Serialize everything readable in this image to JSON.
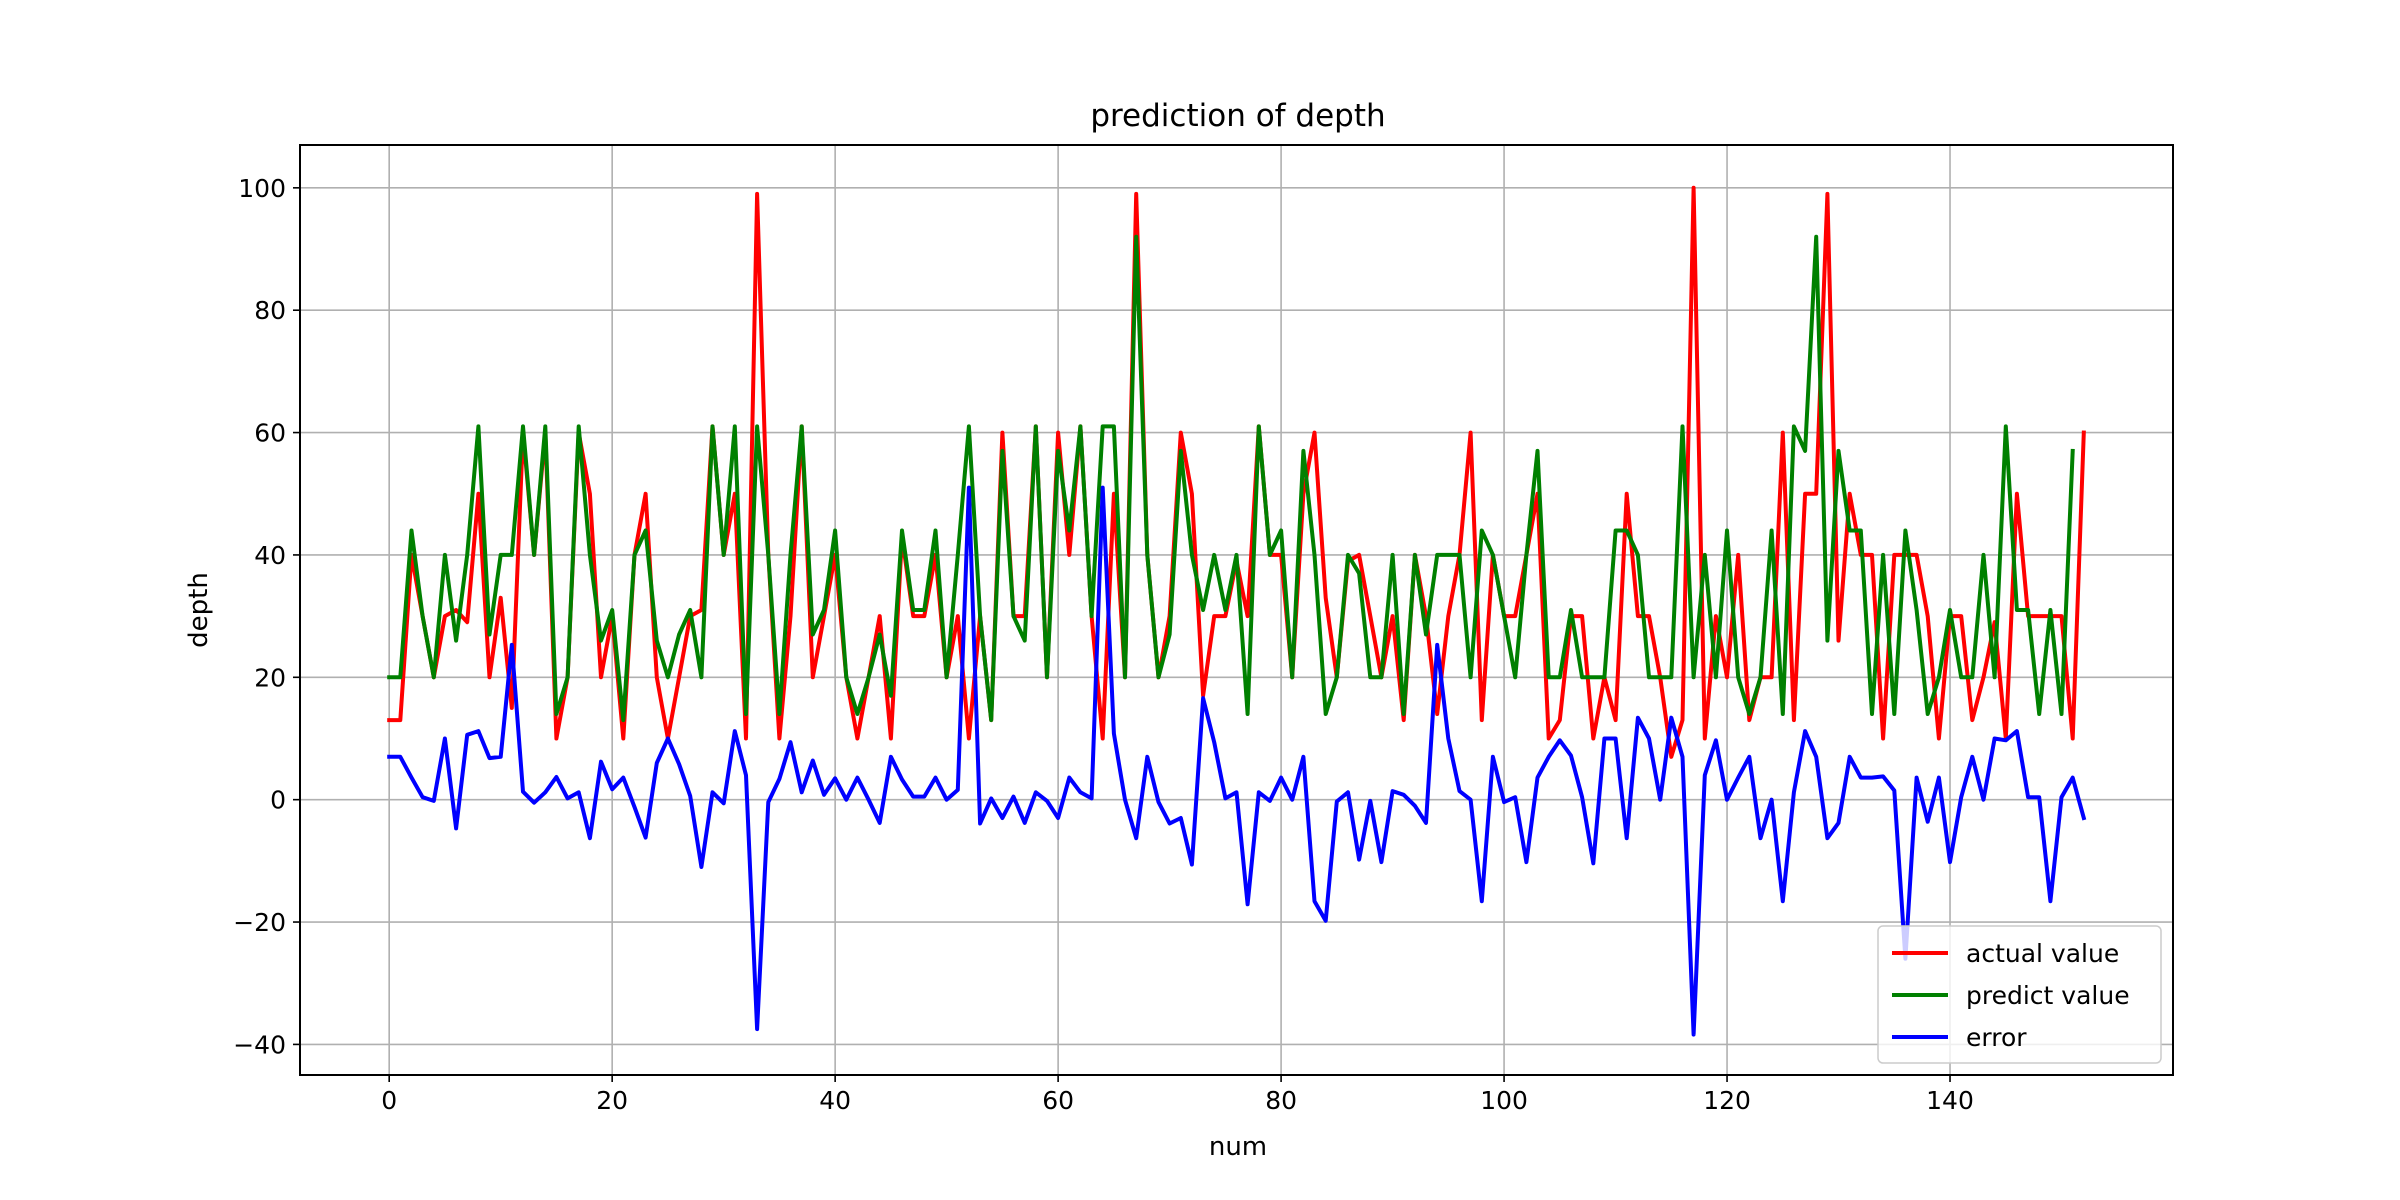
{
  "chart_data": {
    "type": "line",
    "title": "prediction of depth",
    "xlabel": "num",
    "ylabel": "depth",
    "xlim": [
      -8,
      160
    ],
    "ylim": [
      -45,
      107
    ],
    "xticks": [
      0,
      20,
      40,
      60,
      80,
      100,
      120,
      140
    ],
    "yticks": [
      -40,
      -20,
      0,
      20,
      40,
      60,
      80,
      100
    ],
    "grid": true,
    "legend_position": "lower-right",
    "series": [
      {
        "name": "actual value",
        "color": "#ff0000",
        "values": [
          13,
          13,
          40,
          30,
          20,
          30,
          31,
          29,
          50,
          20,
          33,
          15,
          60,
          40,
          60,
          10,
          20,
          60,
          50,
          20,
          30,
          10,
          40,
          50,
          20,
          10,
          20,
          30,
          31,
          61,
          40,
          50,
          10,
          99,
          40,
          10,
          30,
          61,
          20,
          30,
          40,
          20,
          10,
          20,
          30,
          10,
          43,
          30,
          30,
          40,
          20,
          30,
          10,
          30,
          13,
          60,
          30,
          30,
          61,
          20,
          60,
          40,
          61,
          30,
          10,
          50,
          20,
          99,
          40,
          20,
          30,
          60,
          50,
          17,
          30,
          30,
          39,
          30,
          61,
          40,
          40,
          20,
          50,
          60,
          33,
          20,
          39,
          40,
          30,
          20,
          30,
          13,
          40,
          30,
          14,
          30,
          40,
          60,
          13,
          40,
          30,
          30,
          40,
          50,
          10,
          13,
          30,
          30,
          10,
          20,
          13,
          50,
          30,
          30,
          20,
          7,
          13,
          100,
          10,
          30,
          20,
          40,
          13,
          20,
          20,
          60,
          13,
          50,
          50,
          99,
          26,
          50,
          40,
          40,
          10,
          40,
          40,
          40,
          30,
          10,
          30,
          30,
          13,
          20,
          29,
          10,
          50,
          30,
          30,
          30,
          30,
          10,
          60
        ]
      },
      {
        "name": "predict value",
        "color": "#008000",
        "values": [
          20,
          20,
          44,
          30,
          20,
          40,
          26,
          40,
          61,
          27,
          40,
          40,
          61,
          40,
          61,
          14,
          20,
          61,
          40,
          26,
          31,
          13,
          40,
          44,
          26,
          20,
          27,
          31,
          20,
          61,
          40,
          61,
          14,
          61,
          40,
          14,
          40,
          61,
          27,
          31,
          44,
          20,
          14,
          20,
          27,
          17,
          44,
          31,
          31,
          44,
          20,
          40,
          61,
          30,
          13,
          57,
          30,
          26,
          61,
          20,
          57,
          44,
          61,
          30,
          61,
          61,
          20,
          92,
          40,
          20,
          27,
          57,
          40,
          31,
          40,
          31,
          40,
          14,
          61,
          40,
          44,
          20,
          57,
          40,
          14,
          20,
          40,
          37,
          20,
          20,
          40,
          14,
          40,
          27,
          40,
          40,
          40,
          20,
          44,
          40,
          30,
          20,
          40,
          57,
          20,
          20,
          31,
          20,
          20,
          20,
          44,
          44,
          40,
          20,
          20,
          20,
          61,
          20,
          40,
          20,
          44,
          20,
          14,
          20,
          44,
          14,
          61,
          57,
          92,
          26,
          57,
          44,
          44,
          14,
          40,
          14,
          44,
          31,
          14,
          20,
          31,
          20,
          20,
          40,
          20,
          61,
          31,
          31,
          14,
          31,
          14,
          57
        ]
      },
      {
        "name": "error",
        "color": "#0000ff",
        "values": [
          7,
          7,
          3.6,
          0.4,
          -0.2,
          10,
          -4.7,
          10.6,
          11.2,
          6.8,
          7,
          25.3,
          1.3,
          -0.5,
          1.2,
          3.7,
          0.2,
          1.2,
          -6.3,
          6.2,
          1.7,
          3.6,
          -1.2,
          -6.2,
          6,
          10,
          5.8,
          0.6,
          -11,
          1.2,
          -0.6,
          11.2,
          4,
          -37.5,
          -0.4,
          3.4,
          9.4,
          1.2,
          6.4,
          0.8,
          3.5,
          0,
          3.6,
          0,
          -3.8,
          7,
          3.3,
          0.5,
          0.5,
          3.6,
          0,
          1.6,
          51,
          -3.9,
          0.2,
          -3,
          0.5,
          -3.8,
          1.2,
          -0.2,
          -3,
          3.6,
          1.2,
          0.2,
          51,
          10.8,
          0,
          -6.3,
          7,
          -0.4,
          -3.9,
          -3,
          -10.6,
          16.6,
          9.4,
          0.2,
          1.2,
          -17.1,
          1.2,
          -0.2,
          3.6,
          0,
          7,
          -16.6,
          -19.8,
          -0.3,
          1.2,
          -9.8,
          -0.2,
          -10.2,
          1.4,
          0.8,
          -1,
          -3.8,
          25.3,
          10,
          1.4,
          0,
          -16.6,
          7,
          -0.4,
          0.4,
          -10.2,
          3.6,
          7,
          9.7,
          7.2,
          0.4,
          -10.4,
          10,
          10,
          -6.3,
          13.4,
          10,
          0,
          13.4,
          7,
          -38.4,
          4,
          9.7,
          0,
          3.6,
          7,
          -6.3,
          0,
          -16.6,
          1.2,
          11.2,
          7,
          -6.3,
          -3.8,
          7,
          3.6,
          3.6,
          3.8,
          1.5,
          -26,
          3.6,
          -3.6,
          3.6,
          -10.2,
          0.4,
          7,
          0,
          10,
          9.7,
          11.2,
          0.4,
          0.4,
          -16.6,
          0.4,
          3.6,
          -3
        ]
      }
    ]
  }
}
